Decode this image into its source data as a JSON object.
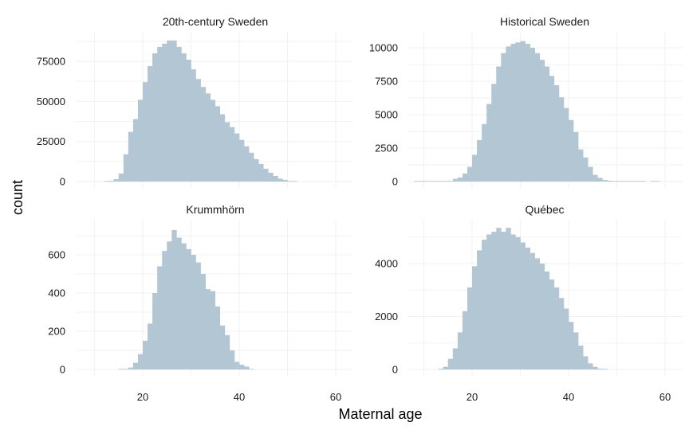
{
  "chart_data": {
    "type": "bar",
    "style": "faceted-histogram",
    "xlabel": "Maternal age",
    "ylabel": "count",
    "grid": true,
    "bar_color": "#b3c6d4",
    "grid_color": "#f2f2f2",
    "bin_width": 1,
    "shared_x": {
      "ticks": [
        20,
        40,
        60
      ],
      "range": [
        10,
        61
      ]
    },
    "panels": [
      {
        "title": "20th-century Sweden",
        "ylim": [
          0,
          92000
        ],
        "yticks": [
          0,
          25000,
          50000,
          75000
        ],
        "bin_start": 12,
        "counts": [
          150,
          500,
          1500,
          5000,
          17000,
          31000,
          39000,
          51000,
          62000,
          72000,
          80000,
          84000,
          86000,
          88000,
          88000,
          84000,
          80000,
          76000,
          70000,
          64000,
          59000,
          55000,
          51000,
          47000,
          42000,
          37000,
          34000,
          30000,
          26000,
          22000,
          18000,
          14000,
          11000,
          8000,
          5500,
          3500,
          1800,
          1000,
          400,
          200
        ]
      },
      {
        "title": "Historical Sweden",
        "ylim": [
          0,
          10700
        ],
        "yticks": [
          0,
          2500,
          5000,
          7500,
          10000
        ],
        "bin_start": 8,
        "counts": [
          20,
          20,
          20,
          20,
          20,
          30,
          30,
          50,
          200,
          300,
          600,
          1100,
          2000,
          3100,
          4300,
          5800,
          7300,
          8600,
          9600,
          10100,
          10300,
          10400,
          10500,
          10300,
          10000,
          9600,
          9100,
          8600,
          7900,
          7200,
          6300,
          5500,
          4600,
          3700,
          2400,
          1800,
          1100,
          500,
          280,
          120,
          60,
          40,
          30,
          30,
          30,
          30,
          30,
          20,
          0,
          20,
          20
        ]
      },
      {
        "title": "Krummhörn",
        "ylim": [
          0,
          760
        ],
        "yticks": [
          0,
          200,
          400,
          600
        ],
        "bin_start": 15,
        "counts": [
          2,
          2,
          10,
          35,
          80,
          150,
          240,
          400,
          540,
          620,
          670,
          730,
          690,
          660,
          630,
          600,
          560,
          500,
          420,
          410,
          330,
          230,
          180,
          100,
          40,
          25,
          15,
          2
        ]
      },
      {
        "title": "Québec",
        "ylim": [
          0,
          5500
        ],
        "yticks": [
          0,
          2000,
          4000
        ],
        "bin_start": 13,
        "counts": [
          30,
          100,
          400,
          800,
          1400,
          2200,
          3100,
          3900,
          4500,
          4900,
          5100,
          5200,
          5350,
          5200,
          5350,
          5100,
          5000,
          4800,
          4600,
          4400,
          4200,
          4000,
          3700,
          3400,
          3100,
          2700,
          2300,
          1800,
          1400,
          900,
          500,
          230,
          100,
          30,
          10
        ]
      }
    ]
  }
}
